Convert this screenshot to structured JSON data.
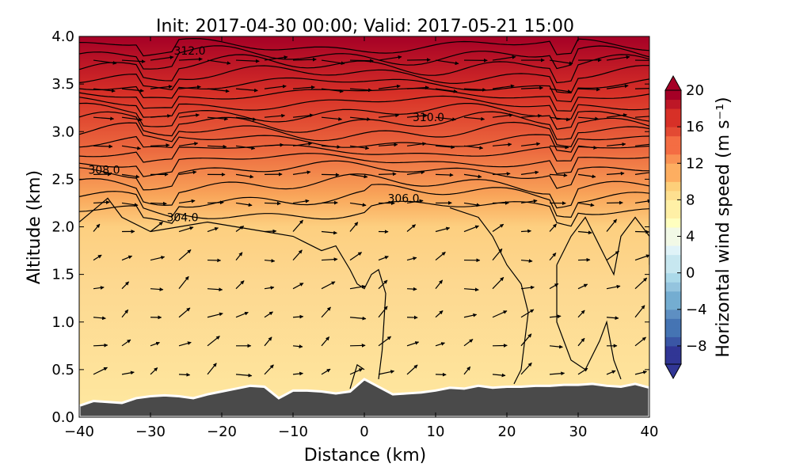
{
  "chart_data": {
    "type": "contour",
    "title": "Init: 2017-04-30 00:00; Valid: 2017-05-21 15:00",
    "xlabel": "Distance (km)",
    "ylabel": "Altitude (km)",
    "xlim": [
      -40,
      40
    ],
    "ylim": [
      0.0,
      4.0
    ],
    "x_ticks": [
      -40,
      -30,
      -20,
      -10,
      0,
      10,
      20,
      30,
      40
    ],
    "x_tick_labels": [
      "−40",
      "−30",
      "−20",
      "−10",
      "0",
      "10",
      "20",
      "30",
      "40"
    ],
    "y_ticks": [
      0.0,
      0.5,
      1.0,
      1.5,
      2.0,
      2.5,
      3.0,
      3.5,
      4.0
    ],
    "y_tick_labels": [
      "0.0",
      "0.5",
      "1.0",
      "1.5",
      "2.0",
      "2.5",
      "3.0",
      "3.5",
      "4.0"
    ],
    "colorbar": {
      "label": "Horizontal wind speed (m s⁻¹)",
      "range": [
        -10,
        20
      ],
      "ticks": [
        -8,
        -4,
        0,
        4,
        8,
        12,
        16,
        20
      ],
      "tick_labels": [
        "−8",
        "−4",
        "0",
        "4",
        "8",
        "12",
        "16",
        "20"
      ],
      "extend": "both",
      "colormap": "RdYlBu_r"
    },
    "terrain": {
      "x": [
        -40,
        -38,
        -36,
        -34,
        -32,
        -30,
        -28,
        -26,
        -24,
        -22,
        -20,
        -18,
        -16,
        -14,
        -12,
        -10,
        -8,
        -6,
        -4,
        -2,
        0,
        2,
        4,
        6,
        8,
        10,
        12,
        14,
        16,
        18,
        20,
        22,
        24,
        26,
        28,
        30,
        32,
        34,
        36,
        38,
        40
      ],
      "altitude": [
        0.12,
        0.17,
        0.16,
        0.15,
        0.2,
        0.22,
        0.23,
        0.22,
        0.2,
        0.24,
        0.27,
        0.3,
        0.33,
        0.32,
        0.2,
        0.28,
        0.28,
        0.27,
        0.25,
        0.27,
        0.4,
        0.32,
        0.24,
        0.25,
        0.26,
        0.28,
        0.31,
        0.3,
        0.33,
        0.31,
        0.32,
        0.32,
        0.33,
        0.33,
        0.34,
        0.34,
        0.35,
        0.33,
        0.32,
        0.35,
        0.31
      ],
      "color": "#4a4a4a",
      "outline_color": "#ffffff"
    },
    "wind_speed_field": {
      "description_levels": [
        -10,
        20
      ],
      "x": [
        -40,
        -30,
        -20,
        -10,
        0,
        10,
        20,
        30,
        40
      ],
      "altitude_km": [
        0.0,
        0.5,
        1.0,
        1.5,
        2.0,
        2.5,
        3.0,
        3.5,
        4.0
      ],
      "values": [
        [
          5,
          5,
          5,
          4,
          4,
          3,
          3,
          3,
          3
        ],
        [
          6,
          6,
          5,
          5,
          4,
          4,
          3,
          3,
          4
        ],
        [
          6,
          6,
          6,
          5,
          5,
          5,
          4,
          3,
          4
        ],
        [
          6,
          7,
          6,
          6,
          6,
          6,
          5,
          4,
          5
        ],
        [
          7,
          8,
          7,
          7,
          7,
          7,
          6,
          5,
          6
        ],
        [
          11,
          10,
          10,
          10,
          10,
          9,
          8,
          8,
          10
        ],
        [
          15,
          14,
          15,
          14,
          15,
          15,
          14,
          13,
          15
        ],
        [
          17,
          17,
          17,
          17,
          18,
          18,
          18,
          17,
          18
        ],
        [
          19,
          19,
          19,
          19,
          20,
          20,
          20,
          19,
          20
        ]
      ]
    },
    "theta_contours": {
      "label_values": [
        "304.0",
        "306.0",
        "308.0",
        "310.0",
        "312.0"
      ],
      "label_positions": [
        {
          "text": "304.0",
          "x": -25.5,
          "y": 2.1
        },
        {
          "text": "306.0",
          "x": 5.5,
          "y": 2.3
        },
        {
          "text": "308.0",
          "x": -36.5,
          "y": 2.6
        },
        {
          "text": "310.0",
          "x": 9.0,
          "y": 3.15
        },
        {
          "text": "312.0",
          "x": -24.5,
          "y": 3.85
        }
      ]
    }
  }
}
